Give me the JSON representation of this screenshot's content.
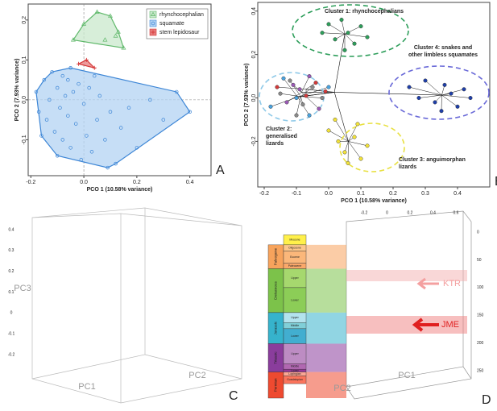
{
  "chart_data": [
    {
      "type": "scatter",
      "panel": "A",
      "xlabel": "PCO 1 (10.58% variance)",
      "ylabel": "PCO 2 (7.93% variance)",
      "xlim": [
        -0.21,
        0.48
      ],
      "ylim": [
        -0.19,
        0.24
      ],
      "xticks": [
        -0.2,
        {
          "value": 0,
          "label": "0.0"
        },
        0.2,
        0.4
      ],
      "yticks": [
        -0.1,
        {
          "value": 0,
          "label": "0.0"
        },
        0.1,
        0.2
      ],
      "legend": "top-right",
      "hull": true,
      "series": [
        {
          "name": "rhynchocephalian",
          "color": "#5fb86a",
          "fill": "#c9e8cc",
          "marker": "triangle",
          "x": [
            -0.04,
            0.0,
            0.05,
            0.1,
            0.13,
            0.15,
            0.08,
            0.12
          ],
          "y": [
            0.15,
            0.19,
            0.22,
            0.21,
            0.17,
            0.13,
            0.15,
            0.16
          ]
        },
        {
          "name": "squamate",
          "color": "#3d86d6",
          "fill": "#b3d3f3",
          "marker": "circle",
          "x": [
            -0.18,
            -0.17,
            -0.15,
            -0.14,
            -0.13,
            -0.12,
            -0.11,
            -0.1,
            -0.09,
            -0.08,
            -0.08,
            -0.07,
            -0.06,
            -0.05,
            -0.05,
            -0.04,
            -0.03,
            -0.02,
            -0.01,
            0.0,
            0.01,
            0.02,
            0.03,
            0.05,
            0.06,
            0.08,
            0.1,
            0.12,
            0.14,
            0.17,
            0.2,
            0.25,
            0.3,
            0.35,
            0.4,
            -0.16,
            -0.1,
            -0.06,
            0.04,
            0.09
          ],
          "y": [
            0.02,
            -0.03,
            0.05,
            -0.05,
            0.0,
            0.07,
            -0.08,
            0.03,
            -0.02,
            0.06,
            -0.1,
            0.01,
            -0.04,
            0.08,
            -0.12,
            0.02,
            -0.06,
            0.04,
            -0.15,
            -0.01,
            -0.09,
            0.03,
            -0.13,
            -0.05,
            0.01,
            -0.1,
            -0.03,
            -0.16,
            -0.07,
            -0.02,
            -0.12,
            0.0,
            -0.05,
            0.02,
            -0.03,
            -0.09,
            -0.14,
            0.05,
            0.06,
            -0.17
          ]
        },
        {
          "name": "stem lepidosaur",
          "color": "#d63a3a",
          "fill": "#e77a7a",
          "marker": "plus",
          "x": [
            -0.02,
            0.01,
            0.04
          ],
          "y": [
            0.09,
            0.1,
            0.08
          ]
        }
      ]
    },
    {
      "type": "scatter",
      "panel": "B",
      "xlabel": "PCO 1 (10.58% variance)",
      "ylabel": "PCO 2 (7.93% variance)",
      "xlim": [
        -0.22,
        0.5
      ],
      "ylim": [
        -0.41,
        0.44
      ],
      "xticks": [
        -0.2,
        -0.1,
        {
          "value": 0,
          "label": "0.0"
        },
        0.1,
        0.2,
        0.3,
        0.4
      ],
      "yticks": [
        -0.2,
        {
          "value": 0,
          "label": "0.0"
        },
        0.2,
        0.4
      ],
      "tree": true,
      "series": [
        {
          "color": "#2e9e5b",
          "x": [
            -0.02,
            0.0,
            0.02,
            0.04,
            0.06,
            0.08,
            0.1,
            0.12,
            0.05
          ],
          "y": [
            0.3,
            0.34,
            0.27,
            0.36,
            0.3,
            0.25,
            0.33,
            0.28,
            0.22
          ]
        },
        {
          "color": "#1f3fa8",
          "x": [
            0.25,
            0.28,
            0.3,
            0.33,
            0.36,
            0.38,
            0.4,
            0.42,
            0.44,
            0.35
          ],
          "y": [
            0.05,
            0.0,
            0.08,
            -0.02,
            0.06,
            0.02,
            -0.04,
            0.04,
            0.0,
            -0.06
          ]
        },
        {
          "color": "#f2e23a",
          "x": [
            0.0,
            0.03,
            0.05,
            0.08,
            0.1,
            0.12,
            0.06,
            0.02,
            0.09
          ],
          "y": [
            -0.15,
            -0.2,
            -0.25,
            -0.18,
            -0.28,
            -0.22,
            -0.3,
            -0.1,
            -0.12
          ]
        },
        {
          "color": "#8a8a8a",
          "x": [
            -0.15,
            -0.12,
            -0.08,
            -0.05,
            -0.02,
            -0.1
          ],
          "y": [
            0.02,
            0.08,
            -0.03,
            0.05,
            0.0,
            -0.08
          ]
        },
        {
          "color": "#9b59b6",
          "x": [
            -0.13,
            -0.09,
            -0.06,
            -0.03,
            -0.11
          ],
          "y": [
            -0.02,
            0.04,
            0.1,
            -0.05,
            0.06
          ]
        },
        {
          "color": "#d33a3a",
          "x": [
            -0.16,
            -0.07,
            -0.04,
            -0.01
          ],
          "y": [
            0.05,
            0.01,
            0.07,
            0.03
          ]
        },
        {
          "color": "#4aa3df",
          "x": [
            -0.18,
            -0.14,
            -0.1,
            -0.06,
            0.0
          ],
          "y": [
            -0.04,
            0.09,
            0.0,
            -0.08,
            0.05
          ]
        }
      ],
      "annotations": [
        {
          "lines": [
            "Cluster 1: rhynchocephalians"
          ],
          "color": "#2e9e5b"
        },
        {
          "lines": [
            "Cluster 4: snakes and",
            "other limbless squamates"
          ],
          "color": "#6a6ad8"
        },
        {
          "lines": [
            "Cluster 2:",
            "generalised",
            "lizards"
          ],
          "color": "#8ec9e8"
        },
        {
          "lines": [
            "Cluster 3: anguimorphan",
            "lizards"
          ],
          "color": "#e8e040"
        }
      ]
    },
    {
      "type": "scatter3d",
      "panel": "C",
      "zticks": [
        0.4,
        0.3,
        0.2,
        0.1,
        0,
        -0.1,
        -0.2
      ],
      "zlabel": "PC3",
      "xlabel": "PC1",
      "ylabel": "PC2"
    },
    {
      "type": "timescale",
      "panel": "D",
      "xticks": [
        -0.2,
        0,
        0.2,
        0.4,
        0.6
      ],
      "yticks": [
        0,
        50,
        100,
        150,
        200,
        250
      ],
      "ylim": [
        0,
        299
      ],
      "xlabel": "PC1",
      "ylabel": "PC2",
      "periods": [
        {
          "name": "Paleogene",
          "start": 23,
          "end": 66,
          "color": "#f7a35c"
        },
        {
          "name": "Cretaceous",
          "start": 66,
          "end": 145,
          "color": "#7cc24a"
        },
        {
          "name": "Jurassic",
          "start": 145,
          "end": 201,
          "color": "#36b3cc"
        },
        {
          "name": "Triassic",
          "start": 201,
          "end": 252,
          "color": "#8a3d9c"
        },
        {
          "name": "Permian",
          "start": 252,
          "end": 299,
          "color": "#ee4a30"
        }
      ],
      "epochs": [
        {
          "name": "Miocene",
          "start": 5,
          "end": 23,
          "color": "#fff04a"
        },
        {
          "name": "Oligocene",
          "start": 23,
          "end": 34,
          "color": "#fcc68a"
        },
        {
          "name": "Eocene",
          "start": 34,
          "end": 56,
          "color": "#fbb77a"
        },
        {
          "name": "Paleocene",
          "start": 56,
          "end": 66,
          "color": "#faa86a"
        },
        {
          "name": "Upper",
          "start": 66,
          "end": 100,
          "color": "#a6d86e"
        },
        {
          "name": "Lower",
          "start": 100,
          "end": 145,
          "color": "#8ccd57"
        },
        {
          "name": "Upper",
          "start": 145,
          "end": 163,
          "color": "#b3e3ee"
        },
        {
          "name": "Middle",
          "start": 163,
          "end": 174,
          "color": "#80cfd8"
        },
        {
          "name": "Lower",
          "start": 174,
          "end": 201,
          "color": "#42aed0"
        },
        {
          "name": "Upper",
          "start": 201,
          "end": 237,
          "color": "#bd8cc3"
        },
        {
          "name": "Middle",
          "start": 237,
          "end": 247,
          "color": "#b168b1"
        },
        {
          "name": "Lower",
          "start": 247,
          "end": 252,
          "color": "#983999"
        },
        {
          "name": "Lopingian",
          "start": 252,
          "end": 259,
          "color": "#fba794"
        },
        {
          "name": "Guadalupian",
          "start": 259,
          "end": 273,
          "color": "#fb745c"
        }
      ],
      "annotations": [
        "KTR",
        "JME"
      ]
    }
  ]
}
